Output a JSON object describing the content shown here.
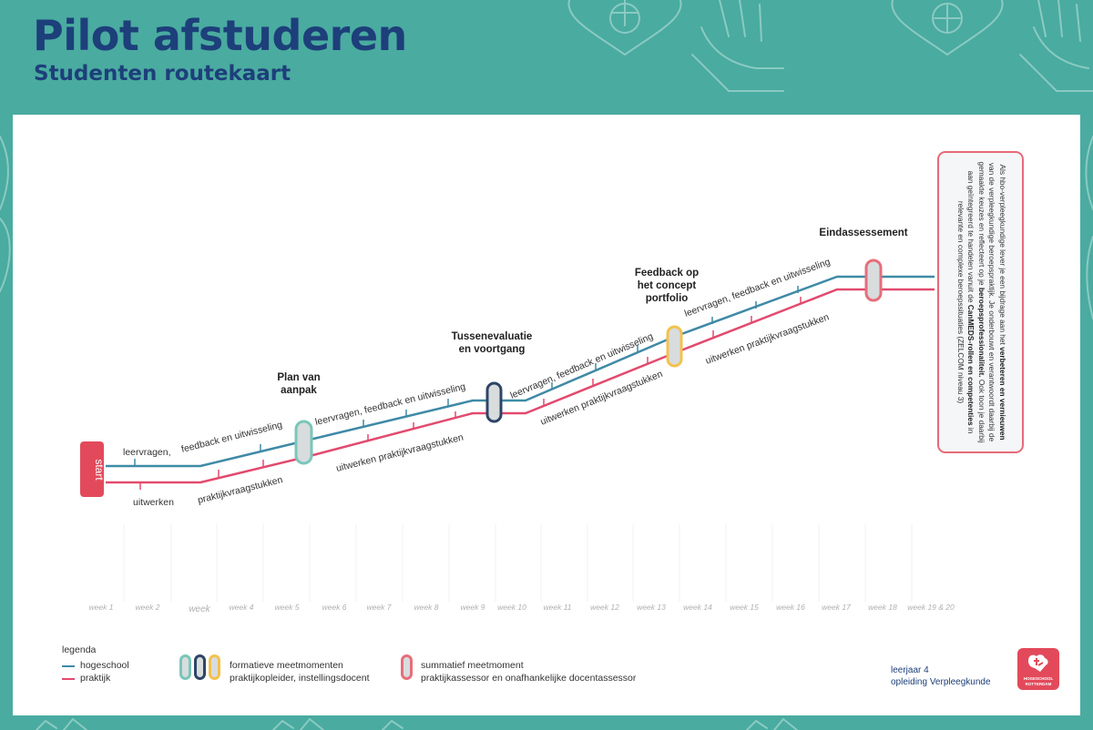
{
  "header": {
    "title": "Pilot afstuderen",
    "subtitle": "Studenten routekaart"
  },
  "colors": {
    "background": "#4aaba0",
    "title": "#1d3f7a",
    "hogeschool": "#3f8aa6",
    "praktijk": "#e24a6e",
    "pill_teal": "#7ac6ba",
    "pill_navy": "#2e4566",
    "pill_yellow": "#f3c24d",
    "pill_red": "#e66e7c"
  },
  "start": {
    "label": "start"
  },
  "route_labels": {
    "hs_leervragen_1": "leervragen,",
    "hs_feedback_1": "feedback en uitwisseling",
    "pr_uitwerken_1": "uitwerken",
    "pr_praktijk_1": "praktijkvraagstukken",
    "hs_segment_2": "leervragen, feedback en uitwisseling",
    "pr_segment_2": "uitwerken praktijkvraagstukken",
    "hs_segment_3": "leervragen, feedback en uitwisseling",
    "pr_segment_3": "uitwerken praktijkvraagstukken",
    "hs_segment_4": "leervragen, feedback en uitwisseling",
    "pr_segment_4": "uitwerken praktijkvraagstukken"
  },
  "milestones": {
    "plan": [
      "Plan van",
      "aanpak"
    ],
    "tussen": [
      "Tussenevaluatie",
      "en voortgang"
    ],
    "feedback": [
      "Feedback op",
      "het concept",
      "portfolio"
    ],
    "eind": [
      "Eindassessement"
    ]
  },
  "weeks": [
    "week 1",
    "week 2",
    "week",
    "week 4",
    "week 5",
    "week 6",
    "week 7",
    "week 8",
    "week 9",
    "week 10",
    "week 11",
    "week 12",
    "week 13",
    "week 14",
    "week 15",
    "week 16",
    "week 17",
    "week 18",
    "week 19 & 20"
  ],
  "info_box": {
    "p1": "Als hbo-verpleegkundige lever je een bijdrage aan het",
    "b1": "verbeteren en vernieuwen",
    "p2": "van de verpleegkundige beroepspraktijk. Je onderbouwt en verantwoordt daarbij de gemaakte keuzes en reflecteert op je",
    "b2": "beroepsprofessionaliteit.",
    "p3": "Ook toon je daarbij aan geïntegreerd te handelen vanuit de",
    "b3": "CanMEDS-rollen en competenties",
    "p4": "in relevante en complexe beroepssituaties (ZELCOM niveau 3)"
  },
  "legend": {
    "title": "legenda",
    "hogeschool": "hogeschool",
    "praktijk": "praktijk",
    "formatief_1": "formatieve meetmomenten",
    "formatief_2": "praktijkopleider, instellingsdocent",
    "summatief_1": "summatief meetmoment",
    "summatief_2": "praktijkassessor en onafhankelijke docentassessor"
  },
  "footer": {
    "line1": "leerjaar 4",
    "line2": "opleiding Verpleegkunde"
  },
  "logo": {
    "line1": "HOGESCHOOL",
    "line2": "ROTTERDAM"
  }
}
